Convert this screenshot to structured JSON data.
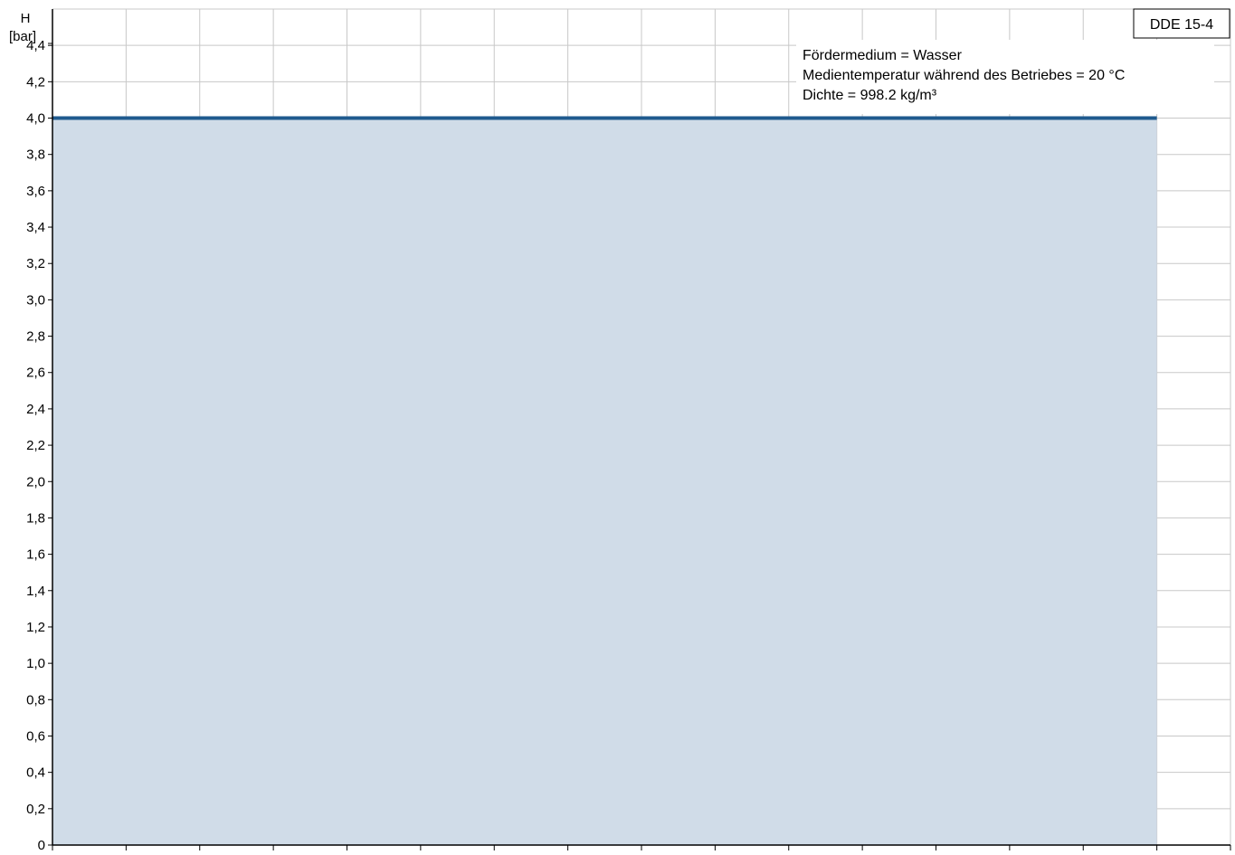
{
  "chart_data": {
    "type": "area",
    "title": "",
    "ylabel_line1": "H",
    "ylabel_line2": "[bar]",
    "xlabel": "",
    "ylim": [
      0,
      4.6
    ],
    "y_ticks": [
      0,
      0.2,
      0.4,
      0.6,
      0.8,
      1.0,
      1.2,
      1.4,
      1.6,
      1.8,
      2.0,
      2.2,
      2.4,
      2.6,
      2.8,
      3.0,
      3.2,
      3.4,
      3.6,
      3.8,
      4.0,
      4.2,
      4.4
    ],
    "y_tick_labels": [
      "0",
      "0,2",
      "0,4",
      "0,6",
      "0,8",
      "1,0",
      "1,2",
      "1,4",
      "1,6",
      "1,8",
      "2,0",
      "2,2",
      "2,4",
      "2,6",
      "2,8",
      "3,0",
      "3,2",
      "3,4",
      "3,6",
      "3,8",
      "4,0",
      "4,2",
      "4,4"
    ],
    "x_tick_labels": [],
    "x_grid_count": 16,
    "grid": true,
    "series": [
      {
        "x_start_fraction": 0,
        "x_end_fraction": 0.9375,
        "y": 4.0,
        "line_color": "#1f5a8e",
        "fill_color": "#d0dce8"
      }
    ],
    "pump_label": "DDE 15-4",
    "info_lines": [
      "Fördermedium = Wasser",
      "Medientemperatur während des Betriebes = 20 °C",
      "Dichte = 998.2 kg/m³"
    ]
  }
}
